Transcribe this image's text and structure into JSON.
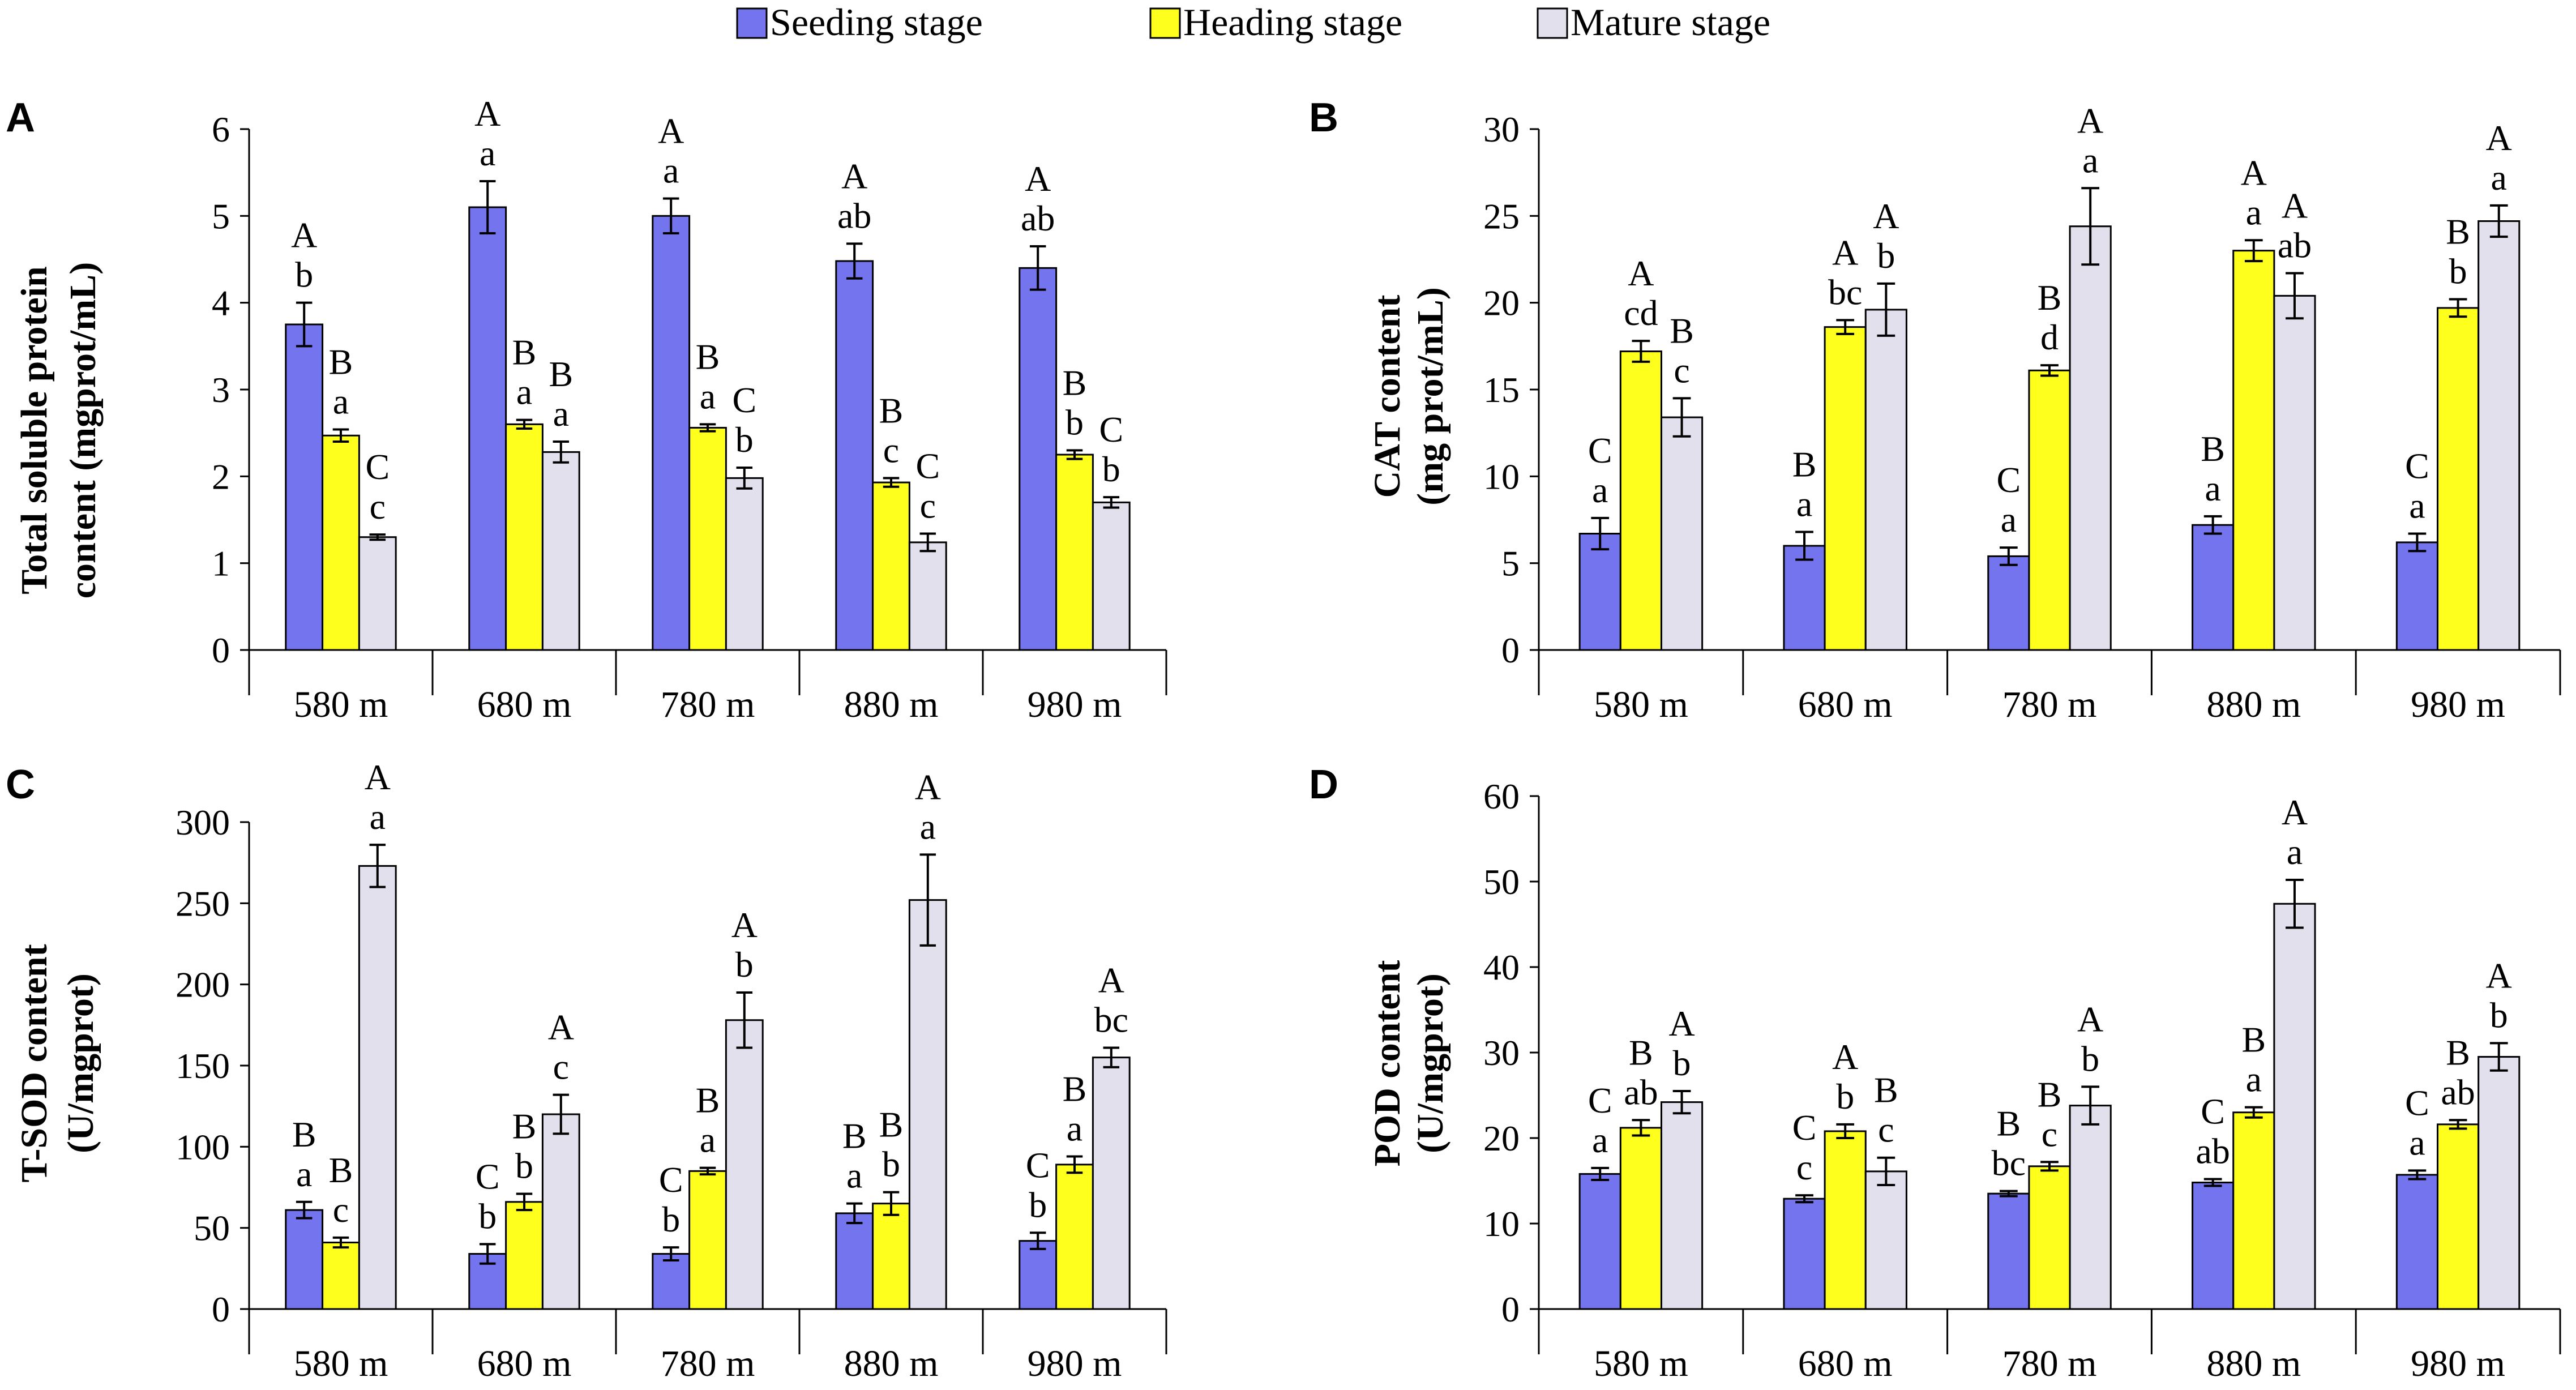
{
  "legend": {
    "items": [
      "Seeding stage",
      "Heading stage",
      "Mature stage"
    ]
  },
  "colors": {
    "series": [
      "#7474ee",
      "#ffff1e",
      "#e2e0ec"
    ],
    "stroke": "#000000"
  },
  "chart_data": [
    {
      "panel": "A",
      "type": "bar",
      "ylabel_lines": [
        "Total soluble protein",
        "content (mgprot/mL)"
      ],
      "ylim": [
        0,
        6
      ],
      "yticks": [
        "0",
        "1",
        "2",
        "3",
        "4",
        "5",
        "6"
      ],
      "categories": [
        "580 m",
        "680 m",
        "780 m",
        "880 m",
        "980 m"
      ],
      "series": [
        {
          "name": "Seeding stage",
          "values": [
            3.75,
            5.1,
            5.0,
            4.48,
            4.4
          ],
          "errors": [
            0.25,
            0.3,
            0.2,
            0.2,
            0.25
          ],
          "labels": [
            [
              "A",
              "b"
            ],
            [
              "A",
              "a"
            ],
            [
              "A",
              "a"
            ],
            [
              "A",
              "ab"
            ],
            [
              "A",
              "ab"
            ]
          ]
        },
        {
          "name": "Heading stage",
          "values": [
            2.47,
            2.6,
            2.56,
            1.93,
            2.25
          ],
          "errors": [
            0.07,
            0.05,
            0.04,
            0.05,
            0.05
          ],
          "labels": [
            [
              "B",
              "a"
            ],
            [
              "B",
              "a"
            ],
            [
              "B",
              "a"
            ],
            [
              "B",
              "c"
            ],
            [
              "B",
              "b"
            ]
          ]
        },
        {
          "name": "Mature stage",
          "values": [
            1.3,
            2.28,
            1.98,
            1.24,
            1.7
          ],
          "errors": [
            0.03,
            0.12,
            0.12,
            0.1,
            0.06
          ],
          "labels": [
            [
              "C",
              "c"
            ],
            [
              "B",
              "a"
            ],
            [
              "C",
              "b"
            ],
            [
              "C",
              "c"
            ],
            [
              "C",
              "b"
            ]
          ]
        }
      ]
    },
    {
      "panel": "B",
      "type": "bar",
      "ylabel_lines": [
        "CAT content",
        "(mg prot/mL)"
      ],
      "ylim": [
        0,
        30
      ],
      "yticks": [
        "0",
        "5",
        "10",
        "15",
        "20",
        "25",
        "30"
      ],
      "categories": [
        "580 m",
        "680 m",
        "780 m",
        "880 m",
        "980 m"
      ],
      "series": [
        {
          "name": "Seeding stage",
          "values": [
            6.7,
            6.0,
            5.4,
            7.2,
            6.2
          ],
          "errors": [
            0.9,
            0.8,
            0.5,
            0.5,
            0.5
          ],
          "labels": [
            [
              "C",
              "a"
            ],
            [
              "B",
              "a"
            ],
            [
              "C",
              "a"
            ],
            [
              "B",
              "a"
            ],
            [
              "C",
              "a"
            ]
          ]
        },
        {
          "name": "Heading stage",
          "values": [
            17.2,
            18.6,
            16.1,
            23.0,
            19.7
          ],
          "errors": [
            0.6,
            0.4,
            0.3,
            0.6,
            0.5
          ],
          "labels": [
            [
              "A",
              "cd"
            ],
            [
              "A",
              "bc"
            ],
            [
              "B",
              "d"
            ],
            [
              "A",
              "a"
            ],
            [
              "B",
              "b"
            ]
          ]
        },
        {
          "name": "Mature stage",
          "values": [
            13.4,
            19.6,
            24.4,
            20.4,
            24.7
          ],
          "errors": [
            1.1,
            1.5,
            2.2,
            1.3,
            0.9
          ],
          "labels": [
            [
              "B",
              "c"
            ],
            [
              "A",
              "b"
            ],
            [
              "A",
              "a"
            ],
            [
              "A",
              "ab"
            ],
            [
              "A",
              "a"
            ]
          ]
        }
      ]
    },
    {
      "panel": "C",
      "type": "bar",
      "ylabel_lines": [
        "T-SOD content",
        "(U/mgprot)"
      ],
      "ylim": [
        0,
        300
      ],
      "yticks": [
        "0",
        "50",
        "100",
        "150",
        "200",
        "250",
        "300"
      ],
      "categories": [
        "580 m",
        "680 m",
        "780 m",
        "880 m",
        "980 m"
      ],
      "series": [
        {
          "name": "Seeding stage",
          "values": [
            61,
            34,
            34,
            59,
            42
          ],
          "errors": [
            5,
            6,
            4,
            6,
            5
          ],
          "labels": [
            [
              "B",
              "a"
            ],
            [
              "C",
              "b"
            ],
            [
              "C",
              "b"
            ],
            [
              "B",
              "a"
            ],
            [
              "C",
              "b"
            ]
          ]
        },
        {
          "name": "Heading stage",
          "values": [
            41,
            66,
            85,
            65,
            89
          ],
          "errors": [
            3,
            5,
            2,
            7,
            5
          ],
          "labels": [
            [
              "B",
              "c"
            ],
            [
              "B",
              "b"
            ],
            [
              "B",
              "a"
            ],
            [
              "B",
              "b"
            ],
            [
              "B",
              "a"
            ]
          ]
        },
        {
          "name": "Mature stage",
          "values": [
            273,
            120,
            178,
            252,
            155
          ],
          "errors": [
            13,
            12,
            17,
            28,
            6
          ],
          "labels": [
            [
              "A",
              "a"
            ],
            [
              "A",
              "c"
            ],
            [
              "A",
              "b"
            ],
            [
              "A",
              "a"
            ],
            [
              "A",
              "bc"
            ]
          ]
        }
      ]
    },
    {
      "panel": "D",
      "type": "bar",
      "ylabel_lines": [
        "POD content",
        "(U/mgprot)"
      ],
      "ylim": [
        0,
        60
      ],
      "yticks": [
        "0",
        "10",
        "20",
        "30",
        "40",
        "50",
        "60"
      ],
      "categories": [
        "580 m",
        "680 m",
        "780 m",
        "880 m",
        "980 m"
      ],
      "series": [
        {
          "name": "Seeding stage",
          "values": [
            15.8,
            12.9,
            13.5,
            14.8,
            15.7
          ],
          "errors": [
            0.7,
            0.4,
            0.3,
            0.4,
            0.5
          ],
          "labels": [
            [
              "C",
              "a"
            ],
            [
              "C",
              "c"
            ],
            [
              "B",
              "bc"
            ],
            [
              "C",
              "ab"
            ],
            [
              "C",
              "a"
            ]
          ]
        },
        {
          "name": "Heading stage",
          "values": [
            21.2,
            20.8,
            16.7,
            23.0,
            21.6
          ],
          "errors": [
            0.9,
            0.8,
            0.5,
            0.6,
            0.5
          ],
          "labels": [
            [
              "B",
              "ab"
            ],
            [
              "A",
              "b"
            ],
            [
              "B",
              "c"
            ],
            [
              "B",
              "a"
            ],
            [
              "B",
              "ab"
            ]
          ]
        },
        {
          "name": "Mature stage",
          "values": [
            24.2,
            16.1,
            23.8,
            47.4,
            29.5
          ],
          "errors": [
            1.3,
            1.6,
            2.2,
            2.8,
            1.6
          ],
          "labels": [
            [
              "A",
              "b"
            ],
            [
              "B",
              "c"
            ],
            [
              "A",
              "b"
            ],
            [
              "A",
              "a"
            ],
            [
              "A",
              "b"
            ]
          ]
        }
      ]
    }
  ]
}
